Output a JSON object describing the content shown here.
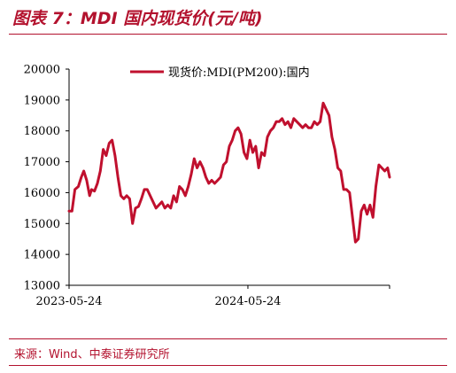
{
  "header": {
    "title": "图表 7：MDI 国内现货价(元/吨)"
  },
  "footer": {
    "source": "来源：Wind、中泰证券研究所"
  },
  "colors": {
    "accent": "#b3122e",
    "series": "#c0102e"
  },
  "chart_data": {
    "type": "line",
    "title": "",
    "xlabel": "",
    "ylabel": "",
    "ylim": [
      13000,
      20000
    ],
    "yticks": [
      13000,
      14000,
      15000,
      16000,
      17000,
      18000,
      19000,
      20000
    ],
    "ytick_labels": [
      "13000",
      "14000",
      "15000",
      "16000",
      "17000",
      "18000",
      "19000",
      "20000"
    ],
    "xlim": [
      "2023-05-24",
      "2025-03-10"
    ],
    "xticks": [
      "2023-05-24",
      "2024-05-24"
    ],
    "xtick_labels": [
      "2023-05-24",
      "2024-05-24"
    ],
    "grid": false,
    "legend_position": "top",
    "series": [
      {
        "name": "现货价:MDI(PM200):国内",
        "color": "#c0102e",
        "x": [
          "2023-05-24",
          "2023-05-30",
          "2023-06-05",
          "2023-06-12",
          "2023-06-18",
          "2023-06-23",
          "2023-06-29",
          "2023-07-05",
          "2023-07-09",
          "2023-07-15",
          "2023-07-21",
          "2023-07-27",
          "2023-08-02",
          "2023-08-08",
          "2023-08-14",
          "2023-08-20",
          "2023-08-26",
          "2023-09-01",
          "2023-09-07",
          "2023-09-13",
          "2023-09-19",
          "2023-09-25",
          "2023-10-01",
          "2023-10-07",
          "2023-10-13",
          "2023-10-19",
          "2023-10-25",
          "2023-10-31",
          "2023-11-06",
          "2023-11-12",
          "2023-11-18",
          "2023-11-24",
          "2023-11-30",
          "2023-12-06",
          "2023-12-12",
          "2023-12-18",
          "2023-12-24",
          "2023-12-30",
          "2024-01-05",
          "2024-01-11",
          "2024-01-17",
          "2024-01-23",
          "2024-01-29",
          "2024-02-04",
          "2024-02-10",
          "2024-02-16",
          "2024-02-22",
          "2024-02-28",
          "2024-03-05",
          "2024-03-11",
          "2024-03-17",
          "2024-03-23",
          "2024-03-29",
          "2024-04-04",
          "2024-04-10",
          "2024-04-16",
          "2024-04-22",
          "2024-04-28",
          "2024-05-04",
          "2024-05-10",
          "2024-05-16",
          "2024-05-22",
          "2024-05-28",
          "2024-06-03",
          "2024-06-09",
          "2024-06-15",
          "2024-06-21",
          "2024-06-27",
          "2024-07-03",
          "2024-07-09",
          "2024-07-15",
          "2024-07-21",
          "2024-07-27",
          "2024-08-02",
          "2024-08-08",
          "2024-08-14",
          "2024-08-20",
          "2024-08-26",
          "2024-09-01",
          "2024-09-07",
          "2024-09-13",
          "2024-09-19",
          "2024-09-25",
          "2024-10-01",
          "2024-10-07",
          "2024-10-13",
          "2024-10-19",
          "2024-10-25",
          "2024-10-31",
          "2024-11-06",
          "2024-11-12",
          "2024-11-18",
          "2024-11-24",
          "2024-11-30",
          "2024-12-06",
          "2024-12-12",
          "2024-12-18",
          "2024-12-24",
          "2024-12-30",
          "2025-01-05",
          "2025-01-11",
          "2025-01-17",
          "2025-01-23",
          "2025-01-29",
          "2025-02-04",
          "2025-02-10",
          "2025-02-16",
          "2025-02-22",
          "2025-02-28",
          "2025-03-06",
          "2025-03-10"
        ],
        "y": [
          15400,
          15400,
          16100,
          16200,
          16500,
          16700,
          16400,
          15900,
          16100,
          16050,
          16300,
          16700,
          17400,
          17200,
          17600,
          17700,
          17200,
          16500,
          15900,
          15800,
          15900,
          15800,
          15000,
          15500,
          15550,
          15800,
          16100,
          16100,
          15900,
          15700,
          15500,
          15600,
          15700,
          15500,
          15600,
          15500,
          15900,
          15700,
          16200,
          16100,
          15900,
          16200,
          16600,
          17100,
          16800,
          17000,
          16800,
          16500,
          16300,
          16400,
          16300,
          16400,
          16500,
          16900,
          17000,
          17500,
          17700,
          18000,
          18100,
          17900,
          17300,
          17100,
          17700,
          17300,
          17500,
          16800,
          17300,
          17200,
          17800,
          18000,
          18100,
          18300,
          18300,
          18400,
          18200,
          18300,
          18100,
          18400,
          18300,
          18200,
          18100,
          18200,
          18100,
          18100,
          18300,
          18200,
          18300,
          18900,
          18700,
          18500,
          17800,
          17400,
          16800,
          16700,
          16100,
          16100,
          16000,
          15200,
          14400,
          14500,
          15400,
          15600,
          15300,
          15600,
          15200,
          16200,
          16900,
          16800,
          16700,
          16800,
          16500
        ]
      }
    ]
  }
}
